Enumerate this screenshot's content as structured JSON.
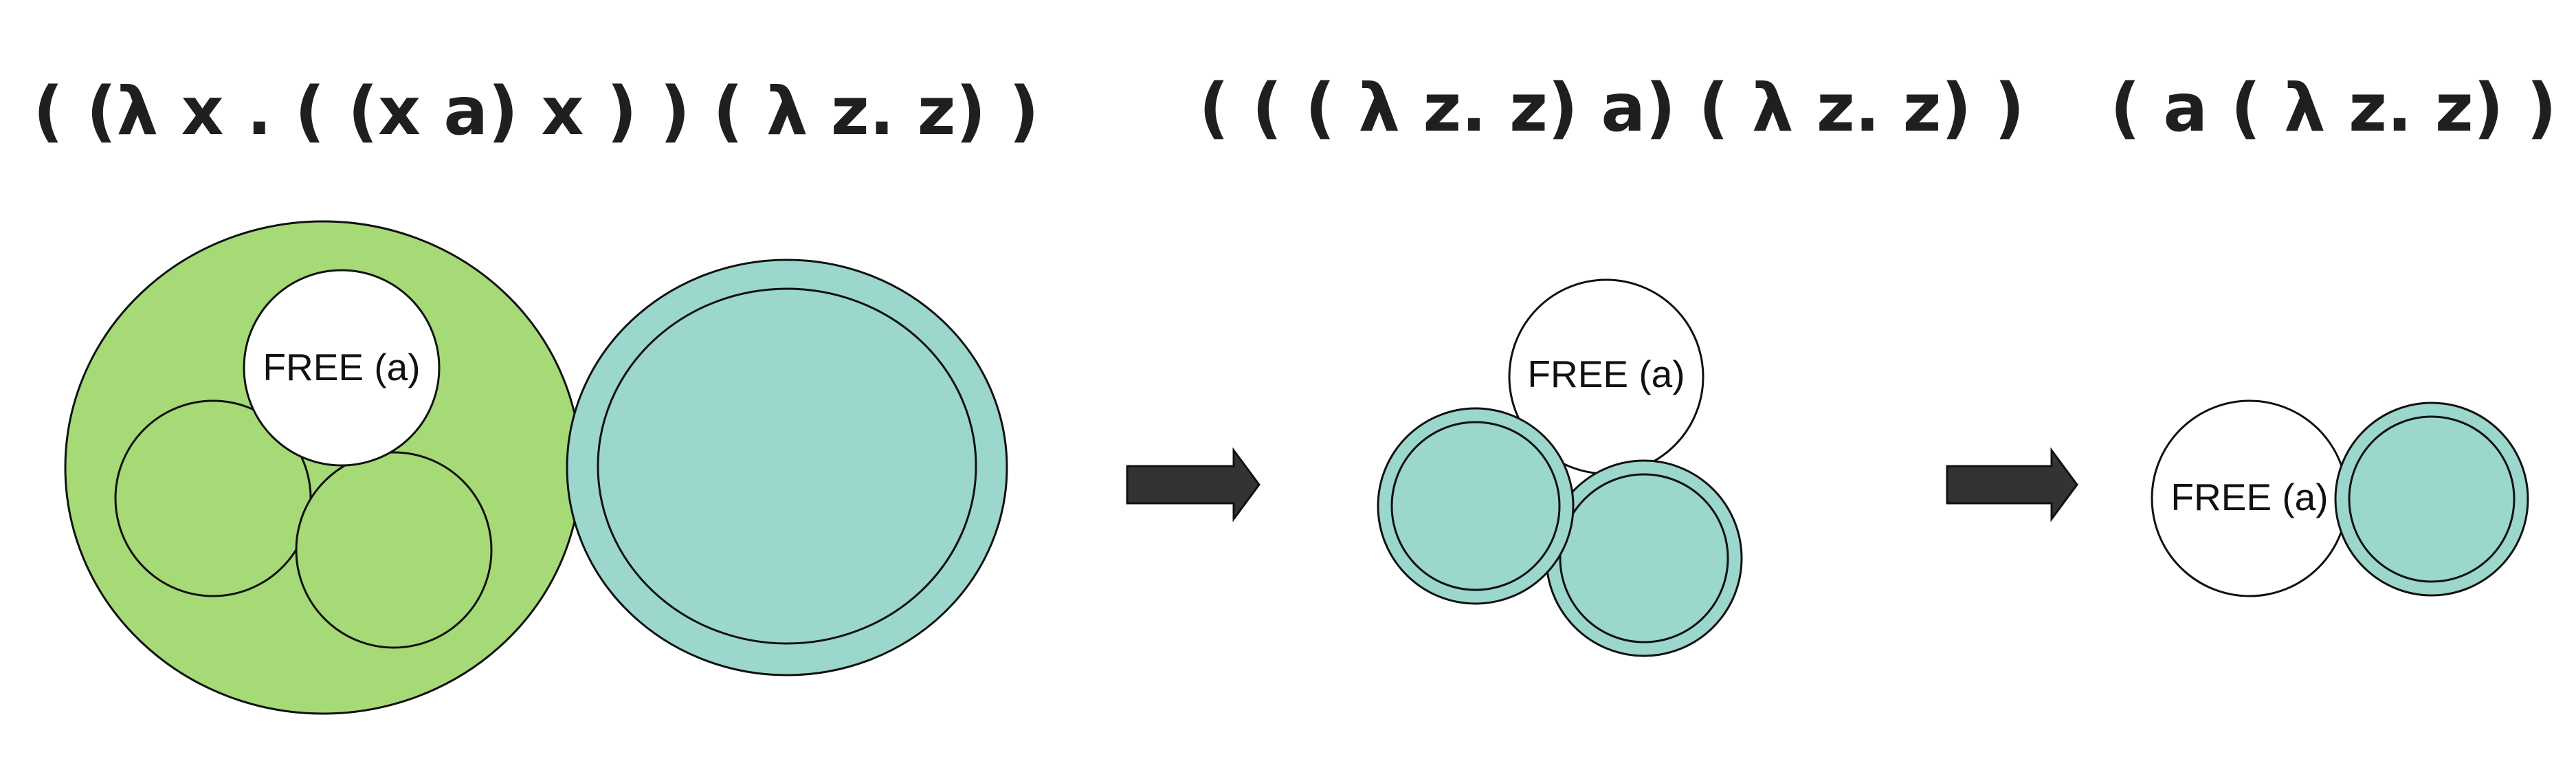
{
  "stages": [
    {
      "expression": "( (λ x . ( (x a) x ) ) ( λ z. z) )",
      "free_label": "FREE (a)"
    },
    {
      "expression": "( ( ( λ z. z) a) ( λ z. z) )",
      "free_label": "FREE (a)"
    },
    {
      "expression": "( a ( λ z. z) )",
      "free_label": "FREE (a)"
    }
  ],
  "colors": {
    "green": "#a5da77",
    "teal": "#9bd7cc",
    "white": "#ffffff",
    "stroke": "#111111",
    "arrow": "#333333"
  },
  "icons": [
    "right-arrow-icon",
    "right-arrow-icon"
  ]
}
